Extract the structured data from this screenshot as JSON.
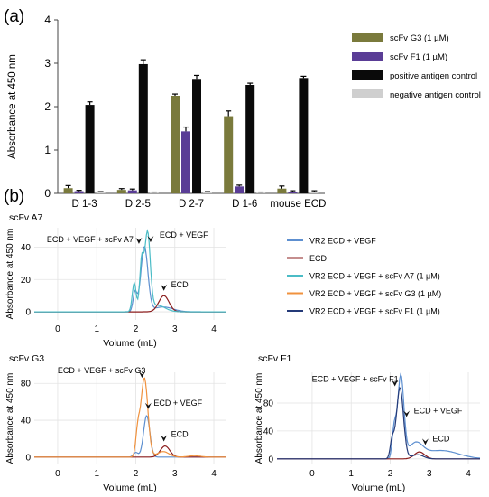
{
  "panel_labels": [
    "(a)",
    "(b)"
  ],
  "colors": {
    "g3": "#7a7a3c",
    "f1": "#5a3d96",
    "pos": "#0a0a0a",
    "neg": "#cfcfcf",
    "vr2": "#5d8fd0",
    "ecd": "#8b1c1c",
    "a7": "#4bbcc6",
    "g3trace": "#f0923e",
    "f1trace": "#243a78"
  },
  "chart_data": [
    {
      "type": "bar",
      "panel": "(a)",
      "ylabel": "Absorbance at 450 nm",
      "ylim": [
        0,
        4
      ],
      "yticks": [
        "0",
        "1",
        "2",
        "3",
        "4"
      ],
      "categories": [
        "D 1-3",
        "D 2-5",
        "D 2-7",
        "D 1-6",
        "mouse ECD"
      ],
      "series": [
        {
          "name": "scFv G3 (1 µM)",
          "color_key": "g3",
          "values": [
            0.12,
            0.08,
            2.25,
            1.78,
            0.11
          ],
          "errors": [
            0.06,
            0.03,
            0.04,
            0.12,
            0.06
          ]
        },
        {
          "name": "scFv F1 (1 µM)",
          "color_key": "f1",
          "values": [
            0.05,
            0.07,
            1.43,
            0.16,
            0.04
          ],
          "errors": [
            0.02,
            0.03,
            0.1,
            0.03,
            0.02
          ]
        },
        {
          "name": "positive antigen control",
          "color_key": "pos",
          "values": [
            2.04,
            2.98,
            2.64,
            2.5,
            2.66
          ],
          "errors": [
            0.07,
            0.1,
            0.08,
            0.04,
            0.04
          ]
        },
        {
          "name": "negative antigen control",
          "color_key": "neg",
          "values": [
            0.03,
            0.02,
            0.03,
            0.02,
            0.04
          ],
          "errors": [
            0.01,
            0.01,
            0.01,
            0.01,
            0.02
          ]
        }
      ],
      "legend_position": "right"
    },
    {
      "type": "line",
      "panel": "(b)",
      "title": "scFv A7",
      "xlabel": "Volume (mL)",
      "ylabel": "Absorbance at 450 nm",
      "xlim": [
        -0.6,
        4.3
      ],
      "ylim": [
        -5,
        52
      ],
      "xticks": [
        "0",
        "1",
        "2",
        "3",
        "4"
      ],
      "yticks": [
        "0",
        "20",
        "40"
      ],
      "series": [
        {
          "legend_index": 0,
          "color_key": "vr2",
          "peaks": [
            [
              2.22,
              40,
              0.09
            ],
            [
              1.98,
              12,
              0.05
            ],
            [
              2.7,
              3,
              0.25
            ]
          ]
        },
        {
          "legend_index": 1,
          "color_key": "ecd",
          "peaks": [
            [
              2.72,
              10,
              0.13
            ]
          ]
        },
        {
          "legend_index": 2,
          "color_key": "a7",
          "peaks": [
            [
              2.3,
              48,
              0.07
            ],
            [
              2.15,
              30,
              0.05
            ],
            [
              1.96,
              18,
              0.05
            ],
            [
              2.55,
              4,
              0.2
            ]
          ]
        }
      ],
      "annotations": [
        {
          "text": "ECD + VEGF + scFv A7",
          "x": 2.08,
          "y": 42
        },
        {
          "text": "ECD + VEGF",
          "x": 2.38,
          "y": 43
        },
        {
          "text": "ECD",
          "x": 2.72,
          "y": 13
        }
      ]
    },
    {
      "type": "line",
      "panel": "(b)",
      "title": "scFv G3",
      "xlabel": "Volume (mL)",
      "ylabel": "Absorbance at 450 nm",
      "xlim": [
        -0.6,
        4.3
      ],
      "ylim": [
        -8,
        92
      ],
      "xticks": [
        "0",
        "1",
        "2",
        "3",
        "4"
      ],
      "yticks": [
        "0",
        "40",
        "80"
      ],
      "series": [
        {
          "legend_index": 0,
          "color_key": "vr2",
          "peaks": [
            [
              2.28,
              45,
              0.08
            ],
            [
              2.0,
              5,
              0.06
            ]
          ]
        },
        {
          "legend_index": 1,
          "color_key": "ecd",
          "peaks": [
            [
              2.75,
              12,
              0.12
            ]
          ]
        },
        {
          "legend_index": 3,
          "color_key": "g3trace",
          "peaks": [
            [
              2.22,
              86,
              0.09
            ],
            [
              2.05,
              25,
              0.05
            ],
            [
              2.7,
              6,
              0.15
            ],
            [
              3.5,
              1.5,
              0.15
            ]
          ]
        }
      ],
      "annotations": [
        {
          "text": "ECD + VEGF + scFv G3",
          "x": 2.16,
          "y": 86
        },
        {
          "text": "ECD + VEGF",
          "x": 2.32,
          "y": 52
        },
        {
          "text": "ECD",
          "x": 2.72,
          "y": 17
        }
      ]
    },
    {
      "type": "line",
      "panel": "(b)",
      "title": "scFv F1",
      "xlabel": "Volume (mL)",
      "ylabel": "Absorbance at 450 nm",
      "xlim": [
        -0.9,
        4.3
      ],
      "ylim": [
        -8,
        124
      ],
      "xticks": [
        "0",
        "1",
        "2",
        "3",
        "4"
      ],
      "yticks": [
        "0",
        "40",
        "80"
      ],
      "series": [
        {
          "legend_index": 0,
          "color_key": "vr2",
          "peaks": [
            [
              2.27,
              118,
              0.08
            ],
            [
              2.1,
              40,
              0.05
            ],
            [
              2.65,
              20,
              0.18
            ],
            [
              3.3,
              12,
              0.45
            ]
          ]
        },
        {
          "legend_index": 1,
          "color_key": "ecd",
          "peaks": [
            [
              2.75,
              10,
              0.13
            ]
          ]
        },
        {
          "legend_index": 4,
          "color_key": "f1trace",
          "peaks": [
            [
              2.25,
              102,
              0.09
            ],
            [
              2.05,
              25,
              0.05
            ],
            [
              2.7,
              6,
              0.15
            ]
          ]
        }
      ],
      "annotations": [
        {
          "text": "ECD + VEGF + scFv F1",
          "x": 2.12,
          "y": 104
        },
        {
          "text": "ECD + VEGF",
          "x": 2.42,
          "y": 60
        },
        {
          "text": "ECD",
          "x": 2.9,
          "y": 20
        }
      ]
    }
  ],
  "line_legend": [
    {
      "label": "VR2 ECD + VEGF",
      "color_key": "vr2"
    },
    {
      "label": "ECD",
      "color_key": "ecd"
    },
    {
      "label": "VR2 ECD + VEGF + scFv A7 (1 µM)",
      "color_key": "a7"
    },
    {
      "label": "VR2 ECD + VEGF + scFv G3 (1 µM)",
      "color_key": "g3trace"
    },
    {
      "label": "VR2 ECD + VEGF + scFv F1 (1 µM)",
      "color_key": "f1trace"
    }
  ]
}
